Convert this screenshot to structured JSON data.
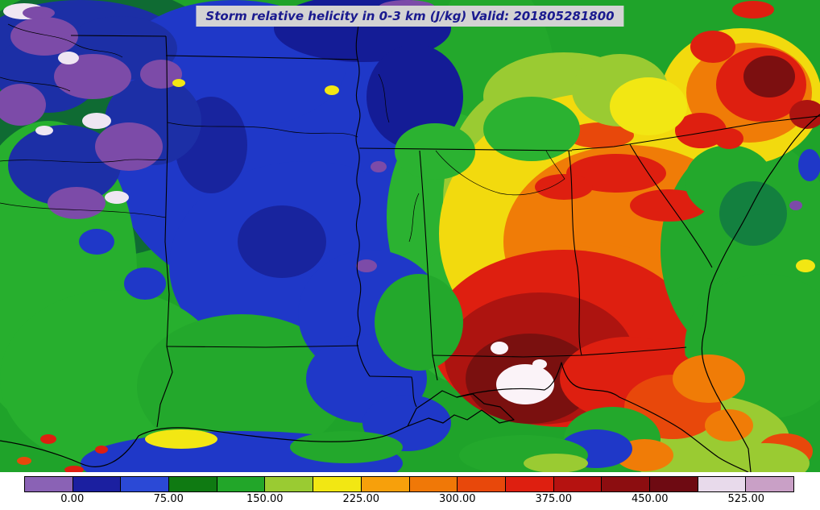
{
  "title": {
    "text": "Storm relative helicity in 0-3 km (J/kg) Valid: 201805281800",
    "text_color": "#1a1a8f",
    "background_color": "#d3d3d3"
  },
  "colorbar": {
    "tick_labels": [
      "0.00",
      "75.00",
      "150.00",
      "225.00",
      "300.00",
      "375.00",
      "450.00",
      "525.00"
    ],
    "colors": [
      "#8A62B5",
      "#1B1FA0",
      "#2B49D6",
      "#0F7A12",
      "#22A629",
      "#9ACB32",
      "#F2E713",
      "#F7A00B",
      "#F07807",
      "#E8480B",
      "#DE1F10",
      "#B51210",
      "#8C0D10",
      "#6E0A12",
      "#E8DAEB",
      "#C9A0C6"
    ]
  },
  "chart_data": {
    "type": "heatmap",
    "title": "Storm relative helicity in 0-3 km (J/kg)",
    "valid": "201805281800",
    "units": "J/kg",
    "colorbar_ticks": [
      0,
      75,
      150,
      225,
      300,
      375,
      450,
      525
    ],
    "level_edges": [
      -37.5,
      0,
      37.5,
      75,
      112.5,
      150,
      187.5,
      225,
      262.5,
      300,
      337.5,
      375,
      412.5,
      450,
      487.5,
      525,
      562.5
    ],
    "level_colors": [
      "#8A62B5",
      "#1B1FA0",
      "#2B49D6",
      "#0F7A12",
      "#22A629",
      "#9ACB32",
      "#F2E713",
      "#F7A00B",
      "#F07807",
      "#E8480B",
      "#DE1F10",
      "#B51210",
      "#8C0D10",
      "#6E0A12",
      "#E8DAEB",
      "#C9A0C6"
    ],
    "legend_position": "bottom",
    "grid": false
  },
  "map": {
    "background": "#1FA32A",
    "blobs": [
      [
        "a",
        120,
        150,
        200,
        170,
        "#0F6B33"
      ],
      [
        "a",
        100,
        60,
        130,
        60,
        "#1C2FA6"
      ],
      [
        "a",
        340,
        200,
        200,
        170,
        "#1F38C8"
      ],
      [
        "a",
        380,
        330,
        170,
        130,
        "#1F38C8"
      ],
      [
        "a",
        290,
        80,
        140,
        80,
        "#1F38C8"
      ],
      [
        "a",
        60,
        340,
        110,
        190,
        "#27AF2E"
      ],
      [
        "a",
        140,
        470,
        140,
        110,
        "#27AF2E"
      ],
      [
        "a",
        300,
        480,
        130,
        90,
        "#23A82C"
      ],
      [
        "a",
        610,
        110,
        80,
        140,
        "#23A82C"
      ],
      [
        "a",
        560,
        270,
        80,
        130,
        "#2BB231"
      ],
      [
        "a",
        590,
        390,
        90,
        90,
        "#2BB231"
      ],
      [
        "a",
        640,
        250,
        90,
        140,
        "#9ACB32"
      ],
      [
        "a",
        700,
        120,
        100,
        55,
        "#9ACB32"
      ],
      [
        "a",
        745,
        290,
        200,
        175,
        "#F2DA0E"
      ],
      [
        "a",
        780,
        300,
        155,
        120,
        "#F07C07"
      ],
      [
        "a",
        730,
        390,
        130,
        90,
        "#F07C07"
      ],
      [
        "a",
        700,
        420,
        165,
        110,
        "#DE1F10"
      ],
      [
        "a",
        930,
        310,
        110,
        140,
        "#23A82C"
      ],
      [
        "a",
        950,
        430,
        100,
        90,
        "#23A82C"
      ],
      [
        "a",
        870,
        545,
        110,
        55,
        "#9ACB32"
      ],
      [
        "a",
        300,
        575,
        200,
        40,
        "#1F38C8"
      ],
      [
        "a",
        920,
        120,
        100,
        85,
        "#F2DA0E"
      ],
      [
        "b",
        450,
        35,
        110,
        42,
        "#141C96"
      ],
      [
        "b",
        515,
        120,
        60,
        65,
        "#141C96"
      ],
      [
        "b",
        350,
        300,
        55,
        45,
        "#18249E"
      ],
      [
        "b",
        262,
        180,
        45,
        60,
        "#18249E"
      ],
      [
        "b",
        460,
        390,
        90,
        80,
        "#1F38C8"
      ],
      [
        "b",
        455,
        470,
        75,
        55,
        "#1F38C8"
      ],
      [
        "b",
        505,
        525,
        55,
        35,
        "#1F38C8"
      ],
      [
        "b",
        670,
        445,
        118,
        82,
        "#AD1410"
      ],
      [
        "b",
        658,
        470,
        80,
        56,
        "#7A100F"
      ],
      [
        "b",
        930,
        115,
        78,
        62,
        "#F07C07"
      ],
      [
        "b",
        945,
        105,
        56,
        46,
        "#DE1F10"
      ],
      [
        "b",
        955,
        95,
        32,
        26,
        "#7C0F10"
      ],
      [
        "b",
        885,
        58,
        28,
        20,
        "#DE1F10"
      ],
      [
        "b",
        765,
        215,
        62,
        24,
        "#DE1F10"
      ],
      [
        "b",
        830,
        255,
        48,
        20,
        "#DE1F10"
      ],
      [
        "b",
        700,
        232,
        36,
        16,
        "#DE1F10"
      ],
      [
        "b",
        745,
        168,
        42,
        16,
        "#E8480B"
      ],
      [
        "b",
        870,
        162,
        32,
        22,
        "#DE1F10"
      ],
      [
        "b",
        780,
        470,
        85,
        52,
        "#DE1F10"
      ],
      [
        "b",
        835,
        505,
        60,
        40,
        "#E8480B"
      ],
      [
        "b",
        880,
        470,
        45,
        30,
        "#F07C07"
      ],
      [
        "b",
        60,
        90,
        65,
        50,
        "#1C2FA6"
      ],
      [
        "b",
        150,
        60,
        70,
        40,
        "#1C2FA6"
      ],
      [
        "b",
        190,
        150,
        60,
        55,
        "#1C2FA6"
      ],
      [
        "b",
        80,
        205,
        70,
        50,
        "#1C2FA6"
      ],
      [
        "b",
        115,
        95,
        48,
        28,
        "#7C4BA8"
      ],
      [
        "b",
        55,
        45,
        42,
        24,
        "#7C4BA8"
      ],
      [
        "b",
        160,
        182,
        42,
        30,
        "#7C4BA8"
      ],
      [
        "b",
        25,
        130,
        32,
        26,
        "#7C4BA8"
      ],
      [
        "b",
        95,
        252,
        36,
        20,
        "#7C4BA8"
      ],
      [
        "b",
        200,
        92,
        26,
        18,
        "#7C4BA8"
      ],
      [
        "b",
        660,
        160,
        60,
        40,
        "#2BB231"
      ],
      [
        "b",
        540,
        188,
        50,
        35,
        "#2BB231"
      ],
      [
        "b",
        520,
        400,
        55,
        60,
        "#23A82C"
      ],
      [
        "b",
        770,
        112,
        60,
        45,
        "#9ACB32"
      ],
      [
        "b",
        805,
        132,
        48,
        36,
        "#F2E713"
      ],
      [
        "b",
        905,
        225,
        55,
        45,
        "#23A82C"
      ],
      [
        "b",
        935,
        265,
        42,
        40,
        "#13803F"
      ],
      [
        "b",
        760,
        545,
        60,
        40,
        "#23A82C"
      ],
      [
        "b",
        800,
        565,
        36,
        20,
        "#F07C07"
      ],
      [
        "b",
        905,
        528,
        30,
        20,
        "#F07C07"
      ],
      [
        "b",
        975,
        560,
        34,
        22,
        "#E8480B"
      ],
      [
        "b",
        950,
        575,
        55,
        25,
        "#9ACB32"
      ],
      [
        "b",
        740,
        557,
        45,
        24,
        "#1F38C8"
      ],
      [
        "b",
        180,
        352,
        26,
        20,
        "#1F38C8"
      ],
      [
        "b",
        120,
        300,
        22,
        16,
        "#1F38C8"
      ],
      [
        "b",
        225,
        545,
        45,
        12,
        "#F2E713"
      ],
      [
        "b",
        430,
        555,
        70,
        20,
        "#23A82C"
      ],
      [
        "b",
        650,
        565,
        80,
        25,
        "#23A82C"
      ],
      [
        "c",
        652,
        477,
        36,
        25,
        "#FBF3F8"
      ],
      [
        "c",
        620,
        432,
        11,
        8,
        "#FBF3F8"
      ],
      [
        "c",
        670,
        452,
        9,
        6,
        "#FBF3F8"
      ],
      [
        "c",
        120,
        150,
        18,
        10,
        "#EFE6F2"
      ],
      [
        "c",
        85,
        72,
        13,
        8,
        "#EFE6F2"
      ],
      [
        "c",
        145,
        245,
        15,
        8,
        "#EFE6F2"
      ],
      [
        "c",
        55,
        162,
        11,
        6,
        "#EFE6F2"
      ],
      [
        "c",
        30,
        14,
        26,
        10,
        "#EFE6F2"
      ],
      [
        "c",
        48,
        16,
        20,
        8,
        "#7C4BA8"
      ],
      [
        "c",
        455,
        330,
        13,
        8,
        "#7C4BA8"
      ],
      [
        "c",
        470,
        207,
        10,
        7,
        "#7C4BA8"
      ],
      [
        "c",
        505,
        9,
        35,
        9,
        "#7C4BA8"
      ],
      [
        "c",
        60,
        545,
        10,
        6,
        "#DE1F10"
      ],
      [
        "c",
        126,
        558,
        8,
        5,
        "#DE1F10"
      ],
      [
        "c",
        30,
        572,
        9,
        5,
        "#E8480B"
      ],
      [
        "c",
        92,
        583,
        12,
        5,
        "#DE1F10"
      ],
      [
        "c",
        412,
        112,
        9,
        6,
        "#F2E713"
      ],
      [
        "c",
        222,
        103,
        8,
        5,
        "#F2E713"
      ],
      [
        "c",
        1005,
        205,
        14,
        20,
        "#1F38C8"
      ],
      [
        "c",
        988,
        255,
        8,
        6,
        "#7C4BA8"
      ],
      [
        "c",
        935,
        12,
        26,
        11,
        "#DE1F10"
      ],
      [
        "c",
        1002,
        142,
        22,
        18,
        "#AD1410"
      ],
      [
        "c",
        905,
        172,
        18,
        13,
        "#DE1F10"
      ],
      [
        "c",
        1000,
        330,
        12,
        8,
        "#F2E713"
      ],
      [
        "c",
        690,
        575,
        40,
        12,
        "#9ACB32"
      ]
    ],
    "borders": [
      "M88,44 L206,45",
      "M206,45 L207,70 L208,180 L205,300 L210,365 L207,430 L214,462 L199,502 L195,530",
      "M206,69 L310,71 L444,74",
      "M207,430 L330,431 L445,429",
      "M444,8 C450,28 438,46 444,74 C451,98 437,112 445,132 C452,152 437,163 444,183 C451,203 438,216 445,236 C452,256 438,270 444,291 C451,311 438,326 446,346 C452,366 440,381 446,401 C450,416 441,421 444,430 C447,446 452,457 459,467",
      "M459,467 L511,468 C514,481 511,493 517,505",
      "M446,184 L710,187",
      "M521,187 C527,262 531,332 537,441 L543,472",
      "M537,441 L650,443 L722,441 C750,439 800,436 852,431",
      "M706,187 C713,232 707,282 717,332 C723,382 715,412 722,441",
      "M710,186 L762,182 L858,167",
      "M782,179 C801,212 831,252 852,282 C866,302 876,317 884,332",
      "M858,167 L946,152 L1018,144"
    ],
    "coastlines": [
      "M0,547 C40,553 72,563 102,576 C126,586 152,573 172,541 C210,521 262,536 312,541 C362,547 412,551 452,546 C482,543 496,533 506,529 L532,519 L550,525 L564,515 L580,521 L598,509 L620,525 L638,521 L621,505 L601,501 L587,489 L567,493 L549,485 L535,495 L517,507 L506,529",
      "M567,493 C600,484 640,480 676,484 C688,478 693,463 697,450 C701,465 707,477 719,481 C737,487 753,481 769,493 C796,505 821,517 846,533 C863,545 877,557 891,567 C903,575 916,580 929,586",
      "M1018,142 C992,162 976,187 959,212 C941,237 931,262 916,287 C901,312 891,332 883,352 C877,372 879,397 873,417 C869,437 873,452 879,467 C885,482 893,497 903,512 C913,527 921,542 929,557 L932,586"
    ],
    "rivers": [
      "M208,152 C252,162 302,152 352,162 C392,170 422,160 444,170",
      "M0,252 C62,264 132,257 206,270",
      "M0,200 C52,195 102,206 152,199 C172,196 190,200 206,198",
      "M10,30 C42,46 72,41 96,56 C116,66 136,61 152,71",
      "M0,96 C32,106 62,101 87,113",
      "M541,187 C561,212 591,232 621,240 C651,246 681,237 701,222 C691,207 683,197 678,187",
      "M470,92 C481,112 476,132 483,152",
      "M520,240 C510,260 515,280 508,300"
    ]
  }
}
